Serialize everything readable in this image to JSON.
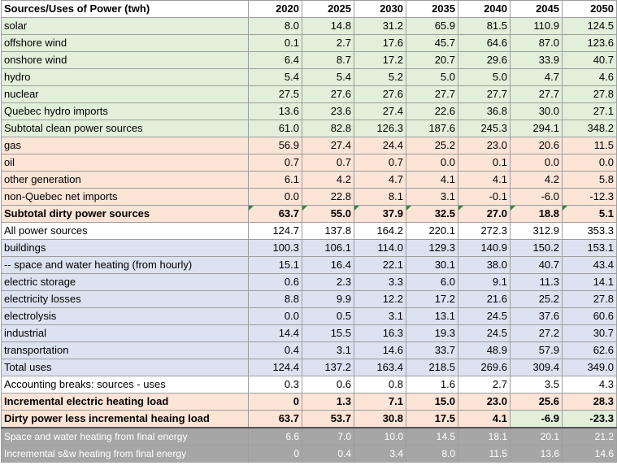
{
  "header": {
    "label": "Sources/Uses of Power (twh)",
    "years": [
      "2020",
      "2025",
      "2030",
      "2035",
      "2040",
      "2045",
      "2050"
    ]
  },
  "rows": [
    {
      "label": "solar",
      "values": [
        "8.0",
        "14.8",
        "31.2",
        "65.9",
        "81.5",
        "110.9",
        "124.5"
      ]
    },
    {
      "label": "offshore wind",
      "values": [
        "0.1",
        "2.7",
        "17.6",
        "45.7",
        "64.6",
        "87.0",
        "123.6"
      ]
    },
    {
      "label": "onshore wind",
      "values": [
        "6.4",
        "8.7",
        "17.2",
        "20.7",
        "29.6",
        "33.9",
        "40.7"
      ]
    },
    {
      "label": "hydro",
      "values": [
        "5.4",
        "5.4",
        "5.2",
        "5.0",
        "5.0",
        "4.7",
        "4.6"
      ]
    },
    {
      "label": "nuclear",
      "values": [
        "27.5",
        "27.6",
        "27.6",
        "27.7",
        "27.7",
        "27.7",
        "27.8"
      ]
    },
    {
      "label": "Quebec hydro imports",
      "values": [
        "13.6",
        "23.6",
        "27.4",
        "22.6",
        "36.8",
        "30.0",
        "27.1"
      ]
    },
    {
      "label": "Subtotal clean power sources",
      "values": [
        "61.0",
        "82.8",
        "126.3",
        "187.6",
        "245.3",
        "294.1",
        "348.2"
      ]
    },
    {
      "label": "gas",
      "values": [
        "56.9",
        "27.4",
        "24.4",
        "25.2",
        "23.0",
        "20.6",
        "11.5"
      ]
    },
    {
      "label": "oil",
      "values": [
        "0.7",
        "0.7",
        "0.7",
        "0.0",
        "0.1",
        "0.0",
        "0.0"
      ]
    },
    {
      "label": "other generation",
      "values": [
        "6.1",
        "4.2",
        "4.7",
        "4.1",
        "4.1",
        "4.2",
        "5.8"
      ]
    },
    {
      "label": "non-Quebec net imports",
      "values": [
        "0.0",
        "22.8",
        "8.1",
        "3.1",
        "-0.1",
        "-6.0",
        "-12.3"
      ]
    },
    {
      "label": "Subtotal dirty power sources",
      "values": [
        "63.7",
        "55.0",
        "37.9",
        "32.5",
        "27.0",
        "18.8",
        "5.1"
      ]
    },
    {
      "label": "All power sources",
      "values": [
        "124.7",
        "137.8",
        "164.2",
        "220.1",
        "272.3",
        "312.9",
        "353.3"
      ]
    },
    {
      "label": "buildings",
      "values": [
        "100.3",
        "106.1",
        "114.0",
        "129.3",
        "140.9",
        "150.2",
        "153.1"
      ]
    },
    {
      "label": "-- space and water heating (from hourly)",
      "values": [
        "15.1",
        "16.4",
        "22.1",
        "30.1",
        "38.0",
        "40.7",
        "43.4"
      ]
    },
    {
      "label": "electric storage",
      "values": [
        "0.6",
        "2.3",
        "3.3",
        "6.0",
        "9.1",
        "11.3",
        "14.1"
      ]
    },
    {
      "label": "electricity losses",
      "values": [
        "8.8",
        "9.9",
        "12.2",
        "17.2",
        "21.6",
        "25.2",
        "27.8"
      ]
    },
    {
      "label": "electrolysis",
      "values": [
        "0.0",
        "0.5",
        "3.1",
        "13.1",
        "24.5",
        "37.6",
        "60.6"
      ]
    },
    {
      "label": "industrial",
      "values": [
        "14.4",
        "15.5",
        "16.3",
        "19.3",
        "24.5",
        "27.2",
        "30.7"
      ]
    },
    {
      "label": "transportation",
      "values": [
        "0.4",
        "3.1",
        "14.6",
        "33.7",
        "48.9",
        "57.9",
        "62.6"
      ]
    },
    {
      "label": "Total uses",
      "values": [
        "124.4",
        "137.2",
        "163.4",
        "218.5",
        "269.6",
        "309.4",
        "349.0"
      ]
    },
    {
      "label": "Accounting breaks: sources - uses",
      "values": [
        "0.3",
        "0.6",
        "0.8",
        "1.6",
        "2.7",
        "3.5",
        "4.3"
      ]
    },
    {
      "label": "Incremental electric heating load",
      "values": [
        "0",
        "1.3",
        "7.1",
        "15.0",
        "23.0",
        "25.6",
        "28.3"
      ]
    },
    {
      "label": "Dirty power less incremental heaing load",
      "values": [
        "63.7",
        "53.7",
        "30.8",
        "17.5",
        "4.1",
        "-6.9",
        "-23.3"
      ]
    },
    {
      "label": "Space and water heating from final energy",
      "values": [
        "6.6",
        "7.0",
        "10.0",
        "14.5",
        "18.1",
        "20.1",
        "21.2"
      ]
    },
    {
      "label": "Incremental s&w heating from final energy",
      "values": [
        "0",
        "0.4",
        "3.4",
        "8.0",
        "11.5",
        "13.6",
        "14.6"
      ]
    }
  ],
  "colors": {
    "clean": "#e2efda",
    "dirty": "#fce4d6",
    "uses": "#dde2f1",
    "summary": "#a6a6a6",
    "indicator": "#2e8b3a"
  }
}
